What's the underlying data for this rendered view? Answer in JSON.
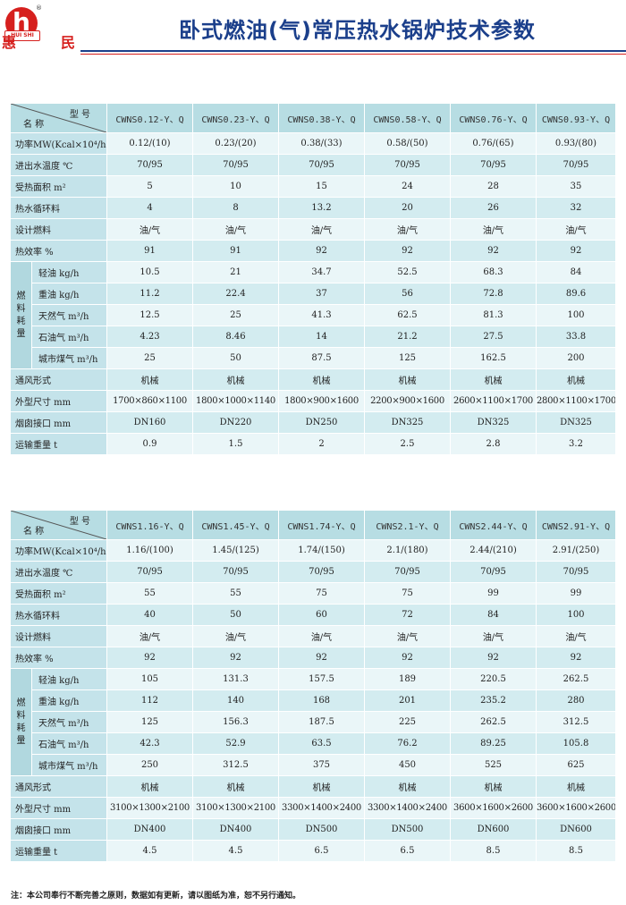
{
  "brand": {
    "left_char": "惠",
    "right_char": "民",
    "logo_letter": "h",
    "logo_band": "HUI SHI",
    "registered": "®"
  },
  "title": "卧式燃油(气)常压热水锅炉技术参数",
  "header_labels": {
    "model": "型 号",
    "name": "名 称"
  },
  "row_labels": {
    "power": "功率MW(Kcal×10⁴/h)",
    "water_temp": "进出水温度 ℃",
    "heat_area": "受热面积 m²",
    "circulation": "热水循环料",
    "fuel": "设计燃料",
    "efficiency": "热效率 %",
    "fuel_group": "燃料耗量",
    "light_oil": "轻油 kg/h",
    "heavy_oil": "重油 kg/h",
    "natural_gas": "天然气 m³/h",
    "lpg": "石油气 m³/h",
    "city_gas": "城市煤气 m³/h",
    "draft": "通风形式",
    "dimensions": "外型尺寸 mm",
    "chimney": "烟囱接口 mm",
    "weight": "运输重量 t"
  },
  "table1": {
    "models": [
      "CWNS0.12-Y、Q",
      "CWNS0.23-Y、Q",
      "CWNS0.38-Y、Q",
      "CWNS0.58-Y、Q",
      "CWNS0.76-Y、Q",
      "CWNS0.93-Y、Q"
    ],
    "power": [
      "0.12/(10)",
      "0.23/(20)",
      "0.38/(33)",
      "0.58/(50)",
      "0.76/(65)",
      "0.93/(80)"
    ],
    "water_temp": [
      "70/95",
      "70/95",
      "70/95",
      "70/95",
      "70/95",
      "70/95"
    ],
    "heat_area": [
      "5",
      "10",
      "15",
      "24",
      "28",
      "35"
    ],
    "circulation": [
      "4",
      "8",
      "13.2",
      "20",
      "26",
      "32"
    ],
    "fuel": [
      "油/气",
      "油/气",
      "油/气",
      "油/气",
      "油/气",
      "油/气"
    ],
    "efficiency": [
      "91",
      "91",
      "92",
      "92",
      "92",
      "92"
    ],
    "light_oil": [
      "10.5",
      "21",
      "34.7",
      "52.5",
      "68.3",
      "84"
    ],
    "heavy_oil": [
      "11.2",
      "22.4",
      "37",
      "56",
      "72.8",
      "89.6"
    ],
    "natural_gas": [
      "12.5",
      "25",
      "41.3",
      "62.5",
      "81.3",
      "100"
    ],
    "lpg": [
      "4.23",
      "8.46",
      "14",
      "21.2",
      "27.5",
      "33.8"
    ],
    "city_gas": [
      "25",
      "50",
      "87.5",
      "125",
      "162.5",
      "200"
    ],
    "draft": [
      "机械",
      "机械",
      "机械",
      "机械",
      "机械",
      "机械"
    ],
    "dimensions": [
      "1700×860×1100",
      "1800×1000×1140",
      "1800×900×1600",
      "2200×900×1600",
      "2600×1100×1700",
      "2800×1100×1700"
    ],
    "chimney": [
      "DN160",
      "DN220",
      "DN250",
      "DN325",
      "DN325",
      "DN325"
    ],
    "weight": [
      "0.9",
      "1.5",
      "2",
      "2.5",
      "2.8",
      "3.2"
    ]
  },
  "table2": {
    "models": [
      "CWNS1.16-Y、Q",
      "CWNS1.45-Y、Q",
      "CWNS1.74-Y、Q",
      "CWNS2.1-Y、Q",
      "CWNS2.44-Y、Q",
      "CWNS2.91-Y、Q"
    ],
    "power": [
      "1.16/(100)",
      "1.45/(125)",
      "1.74/(150)",
      "2.1/(180)",
      "2.44/(210)",
      "2.91/(250)"
    ],
    "water_temp": [
      "70/95",
      "70/95",
      "70/95",
      "70/95",
      "70/95",
      "70/95"
    ],
    "heat_area": [
      "55",
      "55",
      "75",
      "75",
      "99",
      "99"
    ],
    "circulation": [
      "40",
      "50",
      "60",
      "72",
      "84",
      "100"
    ],
    "fuel": [
      "油/气",
      "油/气",
      "油/气",
      "油/气",
      "油/气",
      "油/气"
    ],
    "efficiency": [
      "92",
      "92",
      "92",
      "92",
      "92",
      "92"
    ],
    "light_oil": [
      "105",
      "131.3",
      "157.5",
      "189",
      "220.5",
      "262.5"
    ],
    "heavy_oil": [
      "112",
      "140",
      "168",
      "201",
      "235.2",
      "280"
    ],
    "natural_gas": [
      "125",
      "156.3",
      "187.5",
      "225",
      "262.5",
      "312.5"
    ],
    "lpg": [
      "42.3",
      "52.9",
      "63.5",
      "76.2",
      "89.25",
      "105.8"
    ],
    "city_gas": [
      "250",
      "312.5",
      "375",
      "450",
      "525",
      "625"
    ],
    "draft": [
      "机械",
      "机械",
      "机械",
      "机械",
      "机械",
      "机械"
    ],
    "dimensions": [
      "3100×1300×2100",
      "3100×1300×2100",
      "3300×1400×2400",
      "3300×1400×2400",
      "3600×1600×2600",
      "3600×1600×2600"
    ],
    "chimney": [
      "DN400",
      "DN400",
      "DN500",
      "DN500",
      "DN600",
      "DN600"
    ],
    "weight": [
      "4.5",
      "4.5",
      "6.5",
      "6.5",
      "8.5",
      "8.5"
    ]
  },
  "footnote": "注：本公司奉行不断完善之原则，数据如有更新，请以图纸为准，恕不另行通知。"
}
